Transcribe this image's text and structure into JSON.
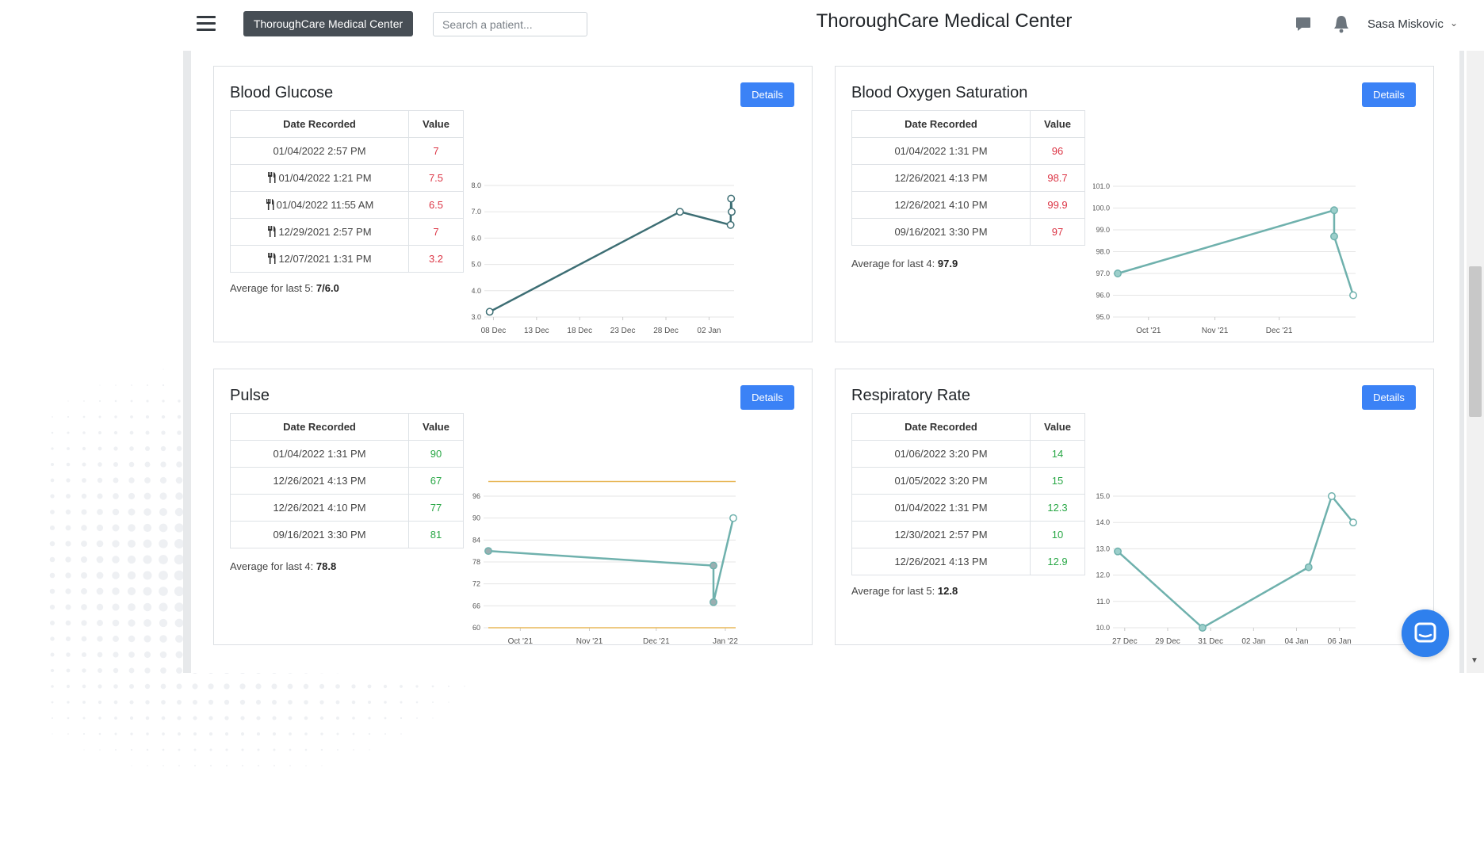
{
  "header": {
    "brand_button": "ThoroughCare Medical Center",
    "search_placeholder": "Search a patient...",
    "title": "ThoroughCare Medical Center",
    "user_name": "Sasa Miskovic",
    "user_caret": "⌄"
  },
  "table_headers": {
    "date": "Date Recorded",
    "value": "Value"
  },
  "details_label": "Details",
  "cards": {
    "glucose": {
      "title": "Blood Glucose",
      "rows": [
        {
          "date": "01/04/2022 2:57 PM",
          "value": "7",
          "fork": false
        },
        {
          "date": "01/04/2022 1:21 PM",
          "value": "7.5",
          "fork": true
        },
        {
          "date": "01/04/2022 11:55 AM",
          "value": "6.5",
          "fork": true
        },
        {
          "date": "12/29/2021 2:57 PM",
          "value": "7",
          "fork": true
        },
        {
          "date": "12/07/2021 1:31 PM",
          "value": "3.2",
          "fork": true
        }
      ],
      "avg_label": "Average for last 5:",
      "avg_value": "7/6.0"
    },
    "oxygen": {
      "title": "Blood Oxygen Saturation",
      "rows": [
        {
          "date": "01/04/2022 1:31 PM",
          "value": "96"
        },
        {
          "date": "12/26/2021 4:13 PM",
          "value": "98.7"
        },
        {
          "date": "12/26/2021 4:10 PM",
          "value": "99.9"
        },
        {
          "date": "09/16/2021 3:30 PM",
          "value": "97"
        }
      ],
      "avg_label": "Average for last 4:",
      "avg_value": "97.9"
    },
    "pulse": {
      "title": "Pulse",
      "rows": [
        {
          "date": "01/04/2022 1:31 PM",
          "value": "90"
        },
        {
          "date": "12/26/2021 4:13 PM",
          "value": "67"
        },
        {
          "date": "12/26/2021 4:10 PM",
          "value": "77"
        },
        {
          "date": "09/16/2021 3:30 PM",
          "value": "81"
        }
      ],
      "avg_label": "Average for last 4:",
      "avg_value": "78.8"
    },
    "resp": {
      "title": "Respiratory Rate",
      "rows": [
        {
          "date": "01/06/2022 3:20 PM",
          "value": "14"
        },
        {
          "date": "01/05/2022 3:20 PM",
          "value": "15"
        },
        {
          "date": "01/04/2022 1:31 PM",
          "value": "12.3"
        },
        {
          "date": "12/30/2021 2:57 PM",
          "value": "10"
        },
        {
          "date": "12/26/2021 4:13 PM",
          "value": "12.9"
        }
      ],
      "avg_label": "Average for last 5:",
      "avg_value": "12.8"
    }
  },
  "chart_data": [
    {
      "id": "glucose",
      "type": "line",
      "title": "",
      "x": [
        "2021-12-07 13:31",
        "2021-12-29 14:57",
        "2022-01-04 11:55",
        "2022-01-04 13:21",
        "2022-01-04 14:57"
      ],
      "series": [
        {
          "values": [
            3.2,
            7,
            6.5,
            7.5,
            7
          ]
        }
      ],
      "x_ticks": [
        "08 Dec",
        "13 Dec",
        "18 Dec",
        "23 Dec",
        "28 Dec",
        "02 Jan"
      ],
      "y_ticks": [
        "3.0",
        "4.0",
        "5.0",
        "6.0",
        "7.0",
        "8.0"
      ],
      "ylim": [
        3,
        8
      ],
      "grid": true,
      "line_color": "#3d6e74"
    },
    {
      "id": "oxygen",
      "type": "line",
      "title": "",
      "x": [
        "2021-09-16 15:30",
        "2021-12-26 16:10",
        "2021-12-26 16:13",
        "2022-01-04 13:31"
      ],
      "series": [
        {
          "values": [
            97,
            99.9,
            98.7,
            96
          ]
        }
      ],
      "x_ticks": [
        "Oct '21",
        "Nov '21",
        "Dec '21"
      ],
      "y_ticks": [
        "95.0",
        "96.0",
        "97.0",
        "98.0",
        "99.0",
        "100.0",
        "101.0"
      ],
      "ylim": [
        95,
        101
      ],
      "grid": true,
      "line_color": "#6fb1ad"
    },
    {
      "id": "pulse",
      "type": "line",
      "title": "",
      "x": [
        "2021-09-16 15:30",
        "2021-12-26 16:10",
        "2021-12-26 16:13",
        "2022-01-04 13:31"
      ],
      "series": [
        {
          "values": [
            81,
            77,
            67,
            90
          ]
        }
      ],
      "x_ticks": [
        "Oct '21",
        "Nov '21",
        "Dec '21",
        "Jan '22"
      ],
      "y_ticks": [
        "60",
        "66",
        "72",
        "78",
        "84",
        "90",
        "96"
      ],
      "ylim": [
        60,
        96
      ],
      "threshold_lines": [
        60,
        100
      ],
      "threshold_color": "#e8b85a",
      "grid": true,
      "line_color": "#6fb1ad"
    },
    {
      "id": "resp",
      "type": "line",
      "title": "",
      "x": [
        "2021-12-26 16:13",
        "2021-12-30 14:57",
        "2022-01-04 13:31",
        "2022-01-05 15:20",
        "2022-01-06 15:20"
      ],
      "series": [
        {
          "values": [
            12.9,
            10,
            12.3,
            15,
            14
          ]
        }
      ],
      "x_ticks": [
        "27 Dec",
        "29 Dec",
        "31 Dec",
        "02 Jan",
        "04 Jan",
        "06 Jan"
      ],
      "y_ticks": [
        "10.0",
        "11.0",
        "12.0",
        "13.0",
        "14.0",
        "15.0"
      ],
      "ylim": [
        10,
        15
      ],
      "grid": true,
      "line_color": "#6fb1ad"
    }
  ]
}
